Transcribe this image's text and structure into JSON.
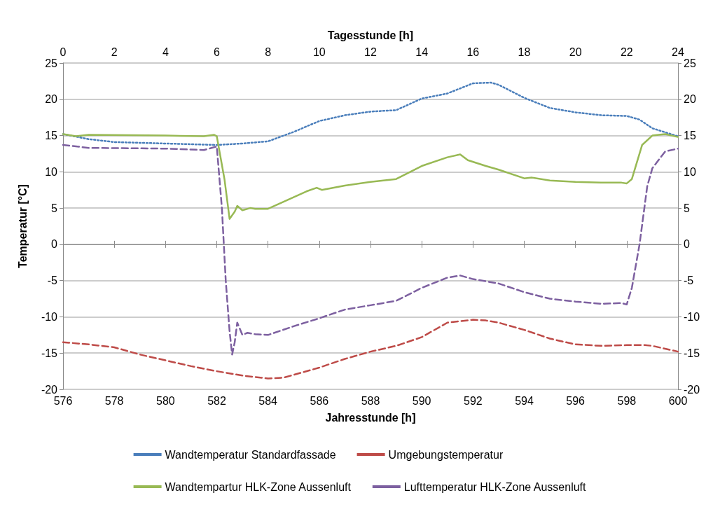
{
  "chart_data": {
    "type": "line",
    "xlabel": "Jahresstunde [h]",
    "x2label": "Tagesstunde [h]",
    "ylabel": "Temperatur [°C]",
    "xlim": [
      576,
      600
    ],
    "xticks": [
      576,
      578,
      580,
      582,
      584,
      586,
      588,
      590,
      592,
      594,
      596,
      598,
      600
    ],
    "x2lim": [
      0,
      24
    ],
    "x2ticks": [
      0,
      2,
      4,
      6,
      8,
      10,
      12,
      14,
      16,
      18,
      20,
      22,
      24
    ],
    "ylim": [
      -20,
      25
    ],
    "yticks": [
      -20,
      -15,
      -10,
      -5,
      0,
      5,
      10,
      15,
      20,
      25
    ],
    "y2lim": [
      -20,
      25
    ],
    "y2ticks": [
      -20,
      -15,
      -10,
      -5,
      0,
      5,
      10,
      15,
      20,
      25
    ],
    "grid": "y",
    "legend": "bottom",
    "marker": "none",
    "series": [
      {
        "name": "Wandtemperatur Standardfassade",
        "color": "#4a7ebb",
        "line_style": "dotted",
        "x": [
          576,
          577,
          578,
          580,
          582,
          583,
          584,
          585,
          586,
          587,
          588,
          589,
          590,
          591,
          591.5,
          592,
          592.7,
          593,
          594,
          595,
          596,
          597,
          598,
          598.5,
          599,
          600
        ],
        "values": [
          15.2,
          14.5,
          14.1,
          13.9,
          13.7,
          13.9,
          14.2,
          15.5,
          17,
          17.8,
          18.3,
          18.5,
          20.1,
          20.8,
          21.5,
          22.2,
          22.3,
          22,
          20.2,
          18.8,
          18.2,
          17.8,
          17.7,
          17.2,
          16,
          14.9
        ]
      },
      {
        "name": "Umgebungstemperatur",
        "color": "#be4b48",
        "line_style": "dashed",
        "x": [
          576,
          577,
          578,
          579,
          580,
          581,
          582,
          583,
          584,
          584.6,
          585,
          586,
          587,
          588,
          589,
          590,
          591,
          592,
          592.5,
          593,
          594,
          595,
          596,
          597,
          598,
          598.7,
          599,
          600
        ],
        "values": [
          -13.5,
          -13.8,
          -14.2,
          -15.2,
          -16,
          -16.8,
          -17.5,
          -18.1,
          -18.5,
          -18.4,
          -18,
          -17,
          -15.8,
          -14.8,
          -14,
          -12.8,
          -10.8,
          -10.4,
          -10.5,
          -10.8,
          -11.8,
          -13,
          -13.8,
          -14,
          -13.9,
          -13.9,
          -14,
          -14.8
        ]
      },
      {
        "name": "Wandtempartur HLK-Zone Aussenluft",
        "color": "#98b954",
        "line_style": "solid",
        "x": [
          576,
          576.5,
          577,
          580,
          581.5,
          581.9,
          582,
          582.3,
          582.5,
          582.7,
          582.8,
          583,
          583.3,
          583.5,
          584,
          585,
          585.5,
          585.9,
          586.1,
          587,
          588,
          589,
          590,
          591,
          591.5,
          591.8,
          592.5,
          593,
          594,
          594.3,
          595,
          596,
          597,
          597.8,
          598,
          598.2,
          598.6,
          599,
          599.5,
          600
        ],
        "values": [
          15.2,
          14.9,
          15.1,
          15,
          14.9,
          15.1,
          14.9,
          9,
          3.5,
          4.5,
          5.3,
          4.7,
          5,
          4.9,
          4.9,
          6.5,
          7.3,
          7.8,
          7.5,
          8.1,
          8.6,
          9,
          10.8,
          12,
          12.4,
          11.6,
          10.8,
          10.3,
          9.1,
          9.2,
          8.8,
          8.6,
          8.5,
          8.5,
          8.4,
          9,
          13.7,
          15,
          15.2,
          14.8
        ]
      },
      {
        "name": "Lufttemperatur HLK-Zone Aussenluft",
        "color": "#7d60a0",
        "line_style": "dashed",
        "x": [
          576,
          577,
          580,
          581.5,
          582,
          582.2,
          582.35,
          582.5,
          582.6,
          582.7,
          582.8,
          583,
          583.2,
          583.5,
          584,
          585,
          586,
          587,
          588,
          589,
          590,
          591,
          591.5,
          592,
          593,
          594,
          595,
          596,
          597,
          597.8,
          598,
          598.2,
          598.5,
          598.8,
          599,
          599.5,
          600
        ],
        "values": [
          13.7,
          13.3,
          13.2,
          13,
          13.5,
          5,
          -5,
          -12,
          -15.2,
          -13.5,
          -10.8,
          -12.5,
          -12.2,
          -12.4,
          -12.5,
          -11.3,
          -10.2,
          -9,
          -8.4,
          -7.8,
          -6,
          -4.6,
          -4.3,
          -4.8,
          -5.4,
          -6.6,
          -7.5,
          -7.9,
          -8.2,
          -8.1,
          -8.3,
          -6,
          0,
          8,
          10.5,
          12.8,
          13.2
        ]
      }
    ]
  }
}
